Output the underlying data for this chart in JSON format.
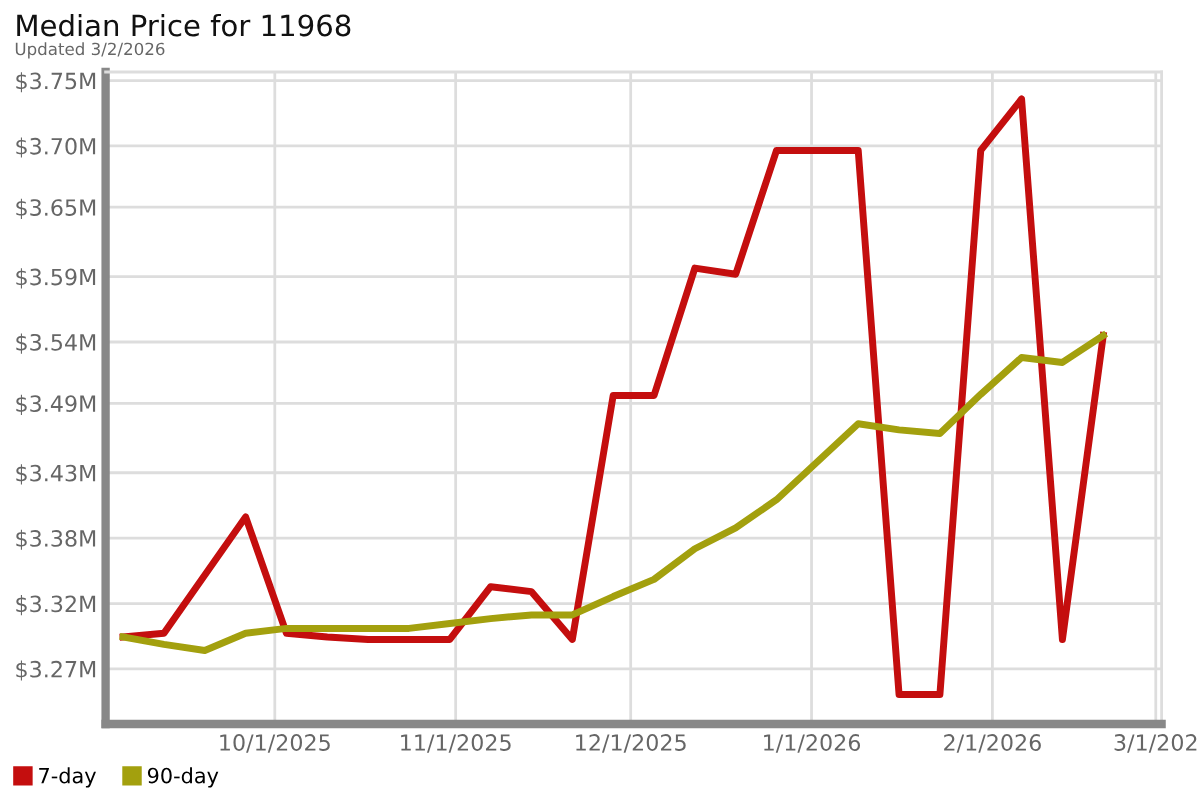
{
  "chart_data": {
    "type": "line",
    "title": "Median Price for 11968",
    "subtitle": "Updated 3/2/2026",
    "x": [
      "2025-09-05",
      "2025-09-12",
      "2025-09-19",
      "2025-09-26",
      "2025-10-03",
      "2025-10-10",
      "2025-10-17",
      "2025-10-24",
      "2025-10-31",
      "2025-11-07",
      "2025-11-14",
      "2025-11-21",
      "2025-11-28",
      "2025-12-05",
      "2025-12-12",
      "2025-12-19",
      "2025-12-26",
      "2026-01-02",
      "2026-01-09",
      "2026-01-16",
      "2026-01-23",
      "2026-01-30",
      "2026-02-06",
      "2026-02-13",
      "2026-02-20"
    ],
    "series": [
      {
        "name": "7-day",
        "color": "#c40e0e",
        "x": [
          "2025-09-05",
          "2025-09-12",
          "2025-09-26",
          "2025-10-03",
          "2025-10-10",
          "2025-10-17",
          "2025-10-24",
          "2025-10-31",
          "2025-11-07",
          "2025-11-14",
          "2025-11-21",
          "2025-11-28",
          "2025-12-05",
          "2025-12-12",
          "2025-12-19",
          "2025-12-26",
          "2026-01-02",
          "2026-01-09",
          "2026-01-16",
          "2026-01-23",
          "2026-01-30",
          "2026-02-06",
          "2026-02-13",
          "2026-02-20"
        ],
        "values": [
          3.296,
          3.299,
          3.394,
          3.299,
          3.296,
          3.294,
          3.294,
          3.294,
          3.337,
          3.333,
          3.294,
          3.493,
          3.493,
          3.597,
          3.592,
          3.693,
          3.693,
          3.693,
          3.249,
          3.249,
          3.693,
          3.735,
          3.294,
          3.542
        ]
      },
      {
        "name": "90-day",
        "color": "#a3a00e",
        "values": [
          3.296,
          3.29,
          3.285,
          3.299,
          3.303,
          3.303,
          3.303,
          3.303,
          3.307,
          3.311,
          3.314,
          3.314,
          3.329,
          3.343,
          3.368,
          3.385,
          3.408,
          3.439,
          3.47,
          3.465,
          3.462,
          3.494,
          3.524,
          3.52,
          3.542
        ]
      }
    ],
    "xlim": [
      "2025-09-02",
      "2026-03-02"
    ],
    "xticks": [
      {
        "value": "2025-10-01",
        "label": "10/1/2025"
      },
      {
        "value": "2025-11-01",
        "label": "11/1/2025"
      },
      {
        "value": "2025-12-01",
        "label": "12/1/2025"
      },
      {
        "value": "2026-01-01",
        "label": "1/1/2026"
      },
      {
        "value": "2026-02-01",
        "label": "2/1/2026"
      },
      {
        "value": "2026-03-01",
        "label": "3/1/202"
      }
    ],
    "ylim": [
      3.225,
      3.757
    ],
    "yticks": [
      {
        "value": 3.27,
        "label": "$3.27M"
      },
      {
        "value": 3.3233,
        "label": "$3.32M"
      },
      {
        "value": 3.3767,
        "label": "$3.38M"
      },
      {
        "value": 3.43,
        "label": "$3.43M"
      },
      {
        "value": 3.4867,
        "label": "$3.49M"
      },
      {
        "value": 3.5367,
        "label": "$3.54M"
      },
      {
        "value": 3.59,
        "label": "$3.59M"
      },
      {
        "value": 3.6467,
        "label": "$3.65M"
      },
      {
        "value": 3.6967,
        "label": "$3.70M"
      },
      {
        "value": 3.75,
        "label": "$3.75M"
      }
    ],
    "grid": true,
    "legend": "bottom left",
    "marker": "none",
    "line_style": "solid"
  }
}
